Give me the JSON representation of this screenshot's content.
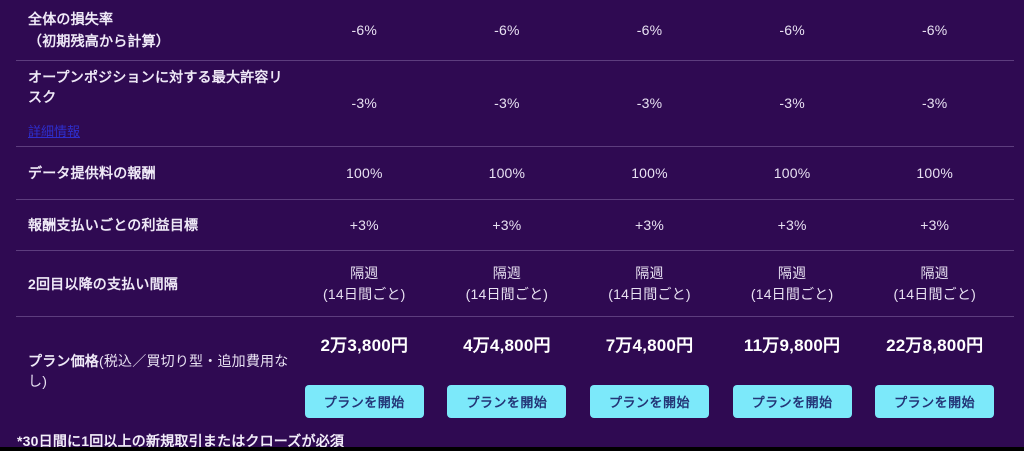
{
  "theme": {
    "background": "#2F0A52",
    "text_primary": "#EFE9F7",
    "text_values": "#E8E1F2",
    "separator": "rgba(214,195,240,0.28)",
    "link_color": "#2E2ECC",
    "button_bg": "#7CE9FA",
    "button_text": "#233577",
    "price_text": "#FFFFFF",
    "bottom_bar": "#000000"
  },
  "table": {
    "rows": [
      {
        "label": "全体の損失率\n（初期残高から計算）",
        "values": [
          "-6%",
          "-6%",
          "-6%",
          "-6%",
          "-6%"
        ]
      },
      {
        "label": "オープンポジションに対する最大許容リスク",
        "link": "詳細情報",
        "values": [
          "-3%",
          "-3%",
          "-3%",
          "-3%",
          "-3%"
        ]
      },
      {
        "label": "データ提供料の報酬",
        "values": [
          "100%",
          "100%",
          "100%",
          "100%",
          "100%"
        ]
      },
      {
        "label": "報酬支払いごとの利益目標",
        "values": [
          "+3%",
          "+3%",
          "+3%",
          "+3%",
          "+3%"
        ]
      },
      {
        "label": "2回目以降の支払い間隔",
        "values": [
          "隔週\n(14日間ごと)",
          "隔週\n(14日間ごと)",
          "隔週\n(14日間ごと)",
          "隔週\n(14日間ごと)",
          "隔週\n(14日間ごと)"
        ]
      }
    ]
  },
  "pricing": {
    "label_main": "プラン価格",
    "label_note": "(税込／買切り型・追加費用なし)",
    "prices": [
      "2万3,800円",
      "4万4,800円",
      "7万4,800円",
      "11万9,800円",
      "22万8,800円"
    ],
    "button_label": "プランを開始"
  },
  "footnote": "*30日間に1回以上の新規取引またはクローズが必須"
}
